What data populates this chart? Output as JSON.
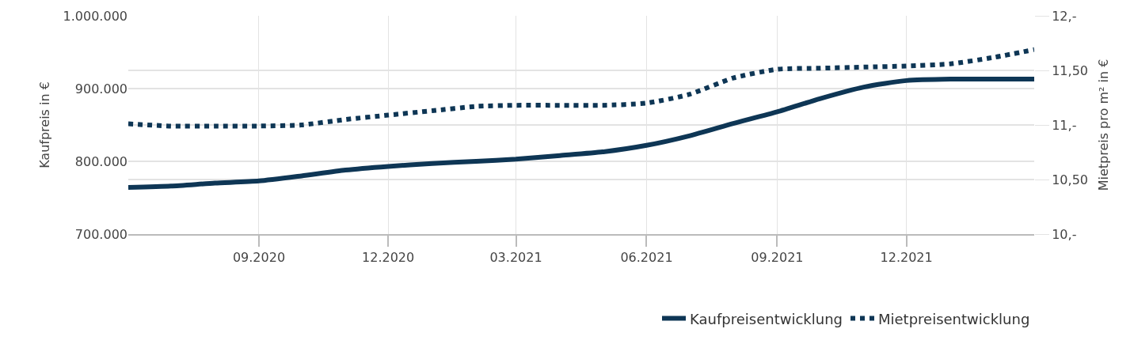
{
  "chart_data": {
    "type": "line",
    "x": [
      "2020-06",
      "2020-07",
      "2020-08",
      "2020-09",
      "2020-10",
      "2020-11",
      "2020-12",
      "2021-01",
      "2021-02",
      "2021-03",
      "2021-04",
      "2021-05",
      "2021-06",
      "2021-07",
      "2021-08",
      "2021-09",
      "2021-10",
      "2021-11",
      "2021-12",
      "2022-01",
      "2022-02",
      "2022-03"
    ],
    "series": [
      {
        "name": "Kaufpreisentwicklung",
        "color": "#0e3655",
        "line_style": "solid",
        "values": [
          764000,
          766000,
          770000,
          773000,
          780000,
          788000,
          793000,
          797000,
          800000,
          803000,
          808000,
          813000,
          822000,
          835000,
          852000,
          868000,
          886000,
          902000,
          911000,
          913000,
          913000,
          913000
        ]
      },
      {
        "name": "Mietpreisentwicklung",
        "color": "#0e3655",
        "line_style": "dotted",
        "axis": "y2",
        "values": [
          11.01,
          10.99,
          10.99,
          10.99,
          11.0,
          11.05,
          11.09,
          11.13,
          11.17,
          11.18,
          11.18,
          11.18,
          11.2,
          11.28,
          11.43,
          11.51,
          11.52,
          11.53,
          11.54,
          11.56,
          11.62,
          11.69
        ]
      }
    ],
    "ylabel": "Kaufpreis in €",
    "y2label": "Mietpreis pro m² in €",
    "xlim": [
      "2020-06",
      "2022-03"
    ],
    "xticks": [
      {
        "value": "2020-09",
        "label": "09.2020"
      },
      {
        "value": "2020-12",
        "label": "12.2020"
      },
      {
        "value": "2021-03",
        "label": "03.2021"
      },
      {
        "value": "2021-06",
        "label": "06.2021"
      },
      {
        "value": "2021-09",
        "label": "09.2021"
      },
      {
        "value": "2021-12",
        "label": "12.2021"
      }
    ],
    "ylim": [
      700000,
      1000000
    ],
    "yticks": [
      {
        "value": 700000,
        "label": "700.000"
      },
      {
        "value": 800000,
        "label": "800.000"
      },
      {
        "value": 900000,
        "label": "900.000"
      },
      {
        "value": 1000000,
        "label": "1.000.000"
      }
    ],
    "y2lim": [
      10,
      12
    ],
    "y2ticks": [
      {
        "value": 10,
        "label": "10,-"
      },
      {
        "value": 10.5,
        "label": "10,50"
      },
      {
        "value": 11,
        "label": "11,-"
      },
      {
        "value": 11.5,
        "label": "11,50"
      },
      {
        "value": 12,
        "label": "12,-"
      }
    ],
    "grid": true,
    "legend": "bottom right",
    "marker": "none"
  }
}
